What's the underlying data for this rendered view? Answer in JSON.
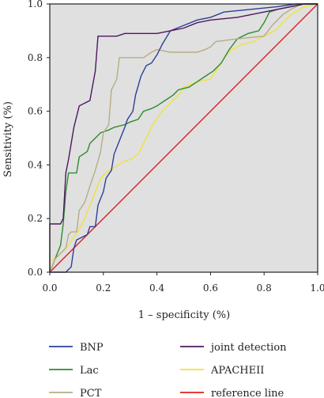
{
  "chart_data": {
    "type": "line",
    "title": "",
    "xlabel": "1 – specificity (%)",
    "ylabel": "Sensitivity (%)",
    "xlim": [
      0,
      1
    ],
    "ylim": [
      0,
      1
    ],
    "xticks": [
      "0.0",
      "0.2",
      "0.4",
      "0.6",
      "0.8",
      "1.0"
    ],
    "yticks": [
      "0.0",
      "0.2",
      "0.4",
      "0.6",
      "0.8",
      "1.0"
    ],
    "grid": false,
    "background": "#e0e0e0",
    "legend_position": "bottom",
    "series": [
      {
        "name": "BNP",
        "color": "#2c3f9a",
        "points": [
          [
            0,
            0
          ],
          [
            0.06,
            0
          ],
          [
            0.08,
            0.02
          ],
          [
            0.09,
            0.09
          ],
          [
            0.1,
            0.12
          ],
          [
            0.14,
            0.14
          ],
          [
            0.15,
            0.17
          ],
          [
            0.17,
            0.17
          ],
          [
            0.18,
            0.25
          ],
          [
            0.2,
            0.3
          ],
          [
            0.21,
            0.35
          ],
          [
            0.23,
            0.38
          ],
          [
            0.24,
            0.44
          ],
          [
            0.26,
            0.49
          ],
          [
            0.28,
            0.54
          ],
          [
            0.29,
            0.57
          ],
          [
            0.31,
            0.6
          ],
          [
            0.32,
            0.66
          ],
          [
            0.34,
            0.73
          ],
          [
            0.36,
            0.77
          ],
          [
            0.38,
            0.78
          ],
          [
            0.4,
            0.81
          ],
          [
            0.42,
            0.85
          ],
          [
            0.45,
            0.9
          ],
          [
            0.5,
            0.92
          ],
          [
            0.55,
            0.94
          ],
          [
            0.6,
            0.95
          ],
          [
            0.65,
            0.97
          ],
          [
            0.75,
            0.98
          ],
          [
            0.85,
            0.99
          ],
          [
            0.92,
            1.0
          ],
          [
            1,
            1
          ]
        ]
      },
      {
        "name": "Lac",
        "color": "#2e8b2e",
        "points": [
          [
            0,
            0
          ],
          [
            0.02,
            0.05
          ],
          [
            0.04,
            0.1
          ],
          [
            0.05,
            0.18
          ],
          [
            0.06,
            0.3
          ],
          [
            0.07,
            0.37
          ],
          [
            0.1,
            0.37
          ],
          [
            0.11,
            0.43
          ],
          [
            0.14,
            0.45
          ],
          [
            0.15,
            0.48
          ],
          [
            0.17,
            0.5
          ],
          [
            0.19,
            0.52
          ],
          [
            0.22,
            0.53
          ],
          [
            0.24,
            0.54
          ],
          [
            0.28,
            0.55
          ],
          [
            0.3,
            0.56
          ],
          [
            0.33,
            0.57
          ],
          [
            0.35,
            0.6
          ],
          [
            0.38,
            0.61
          ],
          [
            0.4,
            0.62
          ],
          [
            0.43,
            0.64
          ],
          [
            0.46,
            0.66
          ],
          [
            0.48,
            0.68
          ],
          [
            0.52,
            0.69
          ],
          [
            0.55,
            0.71
          ],
          [
            0.58,
            0.73
          ],
          [
            0.61,
            0.75
          ],
          [
            0.64,
            0.78
          ],
          [
            0.67,
            0.83
          ],
          [
            0.7,
            0.87
          ],
          [
            0.74,
            0.89
          ],
          [
            0.78,
            0.9
          ],
          [
            0.8,
            0.93
          ],
          [
            0.82,
            0.97
          ],
          [
            0.85,
            0.98
          ],
          [
            0.9,
            0.99
          ],
          [
            0.95,
            1.0
          ],
          [
            1,
            1
          ]
        ]
      },
      {
        "name": "PCT",
        "color": "#b5ad82",
        "points": [
          [
            0,
            0
          ],
          [
            0.02,
            0.05
          ],
          [
            0.04,
            0.07
          ],
          [
            0.06,
            0.09
          ],
          [
            0.07,
            0.14
          ],
          [
            0.08,
            0.15
          ],
          [
            0.1,
            0.15
          ],
          [
            0.11,
            0.23
          ],
          [
            0.13,
            0.26
          ],
          [
            0.15,
            0.32
          ],
          [
            0.17,
            0.38
          ],
          [
            0.19,
            0.45
          ],
          [
            0.2,
            0.52
          ],
          [
            0.22,
            0.55
          ],
          [
            0.23,
            0.68
          ],
          [
            0.25,
            0.72
          ],
          [
            0.26,
            0.8
          ],
          [
            0.35,
            0.8
          ],
          [
            0.38,
            0.82
          ],
          [
            0.4,
            0.83
          ],
          [
            0.45,
            0.82
          ],
          [
            0.5,
            0.82
          ],
          [
            0.55,
            0.82
          ],
          [
            0.58,
            0.83
          ],
          [
            0.6,
            0.84
          ],
          [
            0.62,
            0.86
          ],
          [
            0.7,
            0.87
          ],
          [
            0.8,
            0.88
          ],
          [
            0.83,
            0.92
          ],
          [
            0.87,
            0.96
          ],
          [
            0.9,
            0.98
          ],
          [
            0.94,
            1.0
          ],
          [
            1,
            1
          ]
        ]
      },
      {
        "name": "joint detection",
        "color": "#4d1760",
        "points": [
          [
            0,
            0
          ],
          [
            0,
            0.18
          ],
          [
            0.04,
            0.18
          ],
          [
            0.05,
            0.2
          ],
          [
            0.06,
            0.37
          ],
          [
            0.07,
            0.42
          ],
          [
            0.09,
            0.54
          ],
          [
            0.11,
            0.62
          ],
          [
            0.15,
            0.64
          ],
          [
            0.17,
            0.75
          ],
          [
            0.18,
            0.88
          ],
          [
            0.25,
            0.88
          ],
          [
            0.28,
            0.89
          ],
          [
            0.4,
            0.89
          ],
          [
            0.45,
            0.9
          ],
          [
            0.5,
            0.91
          ],
          [
            0.55,
            0.93
          ],
          [
            0.6,
            0.94
          ],
          [
            0.7,
            0.95
          ],
          [
            0.8,
            0.97
          ],
          [
            0.9,
            0.99
          ],
          [
            0.95,
            1.0
          ],
          [
            1,
            1
          ]
        ]
      },
      {
        "name": "APACHEII",
        "color": "#f0e23a",
        "points": [
          [
            0,
            0
          ],
          [
            0,
            0.04
          ],
          [
            0.03,
            0.06
          ],
          [
            0.05,
            0.08
          ],
          [
            0.07,
            0.1
          ],
          [
            0.09,
            0.13
          ],
          [
            0.11,
            0.16
          ],
          [
            0.13,
            0.2
          ],
          [
            0.15,
            0.25
          ],
          [
            0.17,
            0.3
          ],
          [
            0.19,
            0.35
          ],
          [
            0.21,
            0.37
          ],
          [
            0.24,
            0.39
          ],
          [
            0.27,
            0.41
          ],
          [
            0.3,
            0.42
          ],
          [
            0.33,
            0.44
          ],
          [
            0.35,
            0.48
          ],
          [
            0.37,
            0.52
          ],
          [
            0.39,
            0.56
          ],
          [
            0.42,
            0.6
          ],
          [
            0.45,
            0.63
          ],
          [
            0.48,
            0.66
          ],
          [
            0.5,
            0.69
          ],
          [
            0.55,
            0.71
          ],
          [
            0.6,
            0.72
          ],
          [
            0.62,
            0.75
          ],
          [
            0.64,
            0.78
          ],
          [
            0.66,
            0.81
          ],
          [
            0.68,
            0.83
          ],
          [
            0.72,
            0.85
          ],
          [
            0.76,
            0.86
          ],
          [
            0.8,
            0.88
          ],
          [
            0.84,
            0.9
          ],
          [
            0.87,
            0.93
          ],
          [
            0.9,
            0.96
          ],
          [
            0.95,
            0.99
          ],
          [
            1,
            1
          ]
        ]
      },
      {
        "name": "reference line",
        "color": "#e02020",
        "points": [
          [
            0,
            0
          ],
          [
            1,
            1
          ]
        ]
      }
    ]
  }
}
